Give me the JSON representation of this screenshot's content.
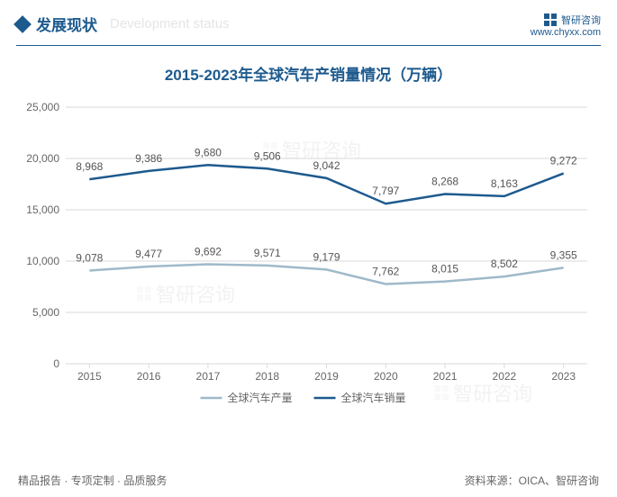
{
  "header": {
    "title_cn": "发展现状",
    "title_en": "Development status",
    "brand": "智研咨询",
    "brand_url": "www.chyxx.com"
  },
  "chart": {
    "type": "line",
    "title": "2015-2023年全球汽车产销量情况（万辆）",
    "categories": [
      "2015",
      "2016",
      "2017",
      "2018",
      "2019",
      "2020",
      "2021",
      "2022",
      "2023"
    ],
    "series": [
      {
        "name": "全球汽车产量",
        "color": "#9fb9c9",
        "values": [
          9078,
          9477,
          9692,
          9571,
          9179,
          7762,
          8015,
          8502,
          9355
        ],
        "label_offset": -10
      },
      {
        "name": "全球汽车销量",
        "color": "#1d5a8e",
        "values": [
          8968,
          9386,
          9680,
          9506,
          9042,
          7797,
          8268,
          8163,
          9272
        ],
        "label_offset": -10
      }
    ],
    "ylim": [
      0,
      25000
    ],
    "ytick_step": 5000,
    "yticks": [
      "0",
      "5,000",
      "10,000",
      "15,000",
      "20,000",
      "25,000"
    ],
    "background_color": "#ffffff",
    "grid_color": "#d9d9d9",
    "axis_color": "#666666",
    "line_width": 2.5,
    "title_color": "#1d5a8e",
    "title_fontsize": 17,
    "label_fontsize": 12,
    "series2_visual_values": [
      17968,
      18786,
      19360,
      19012,
      18084,
      15594,
      16536,
      16326,
      18544
    ]
  },
  "footer": {
    "left": "精品报告 · 专项定制 · 品质服务",
    "right": "资料来源：OICA、智研咨询"
  },
  "watermark_text": "智研咨询"
}
